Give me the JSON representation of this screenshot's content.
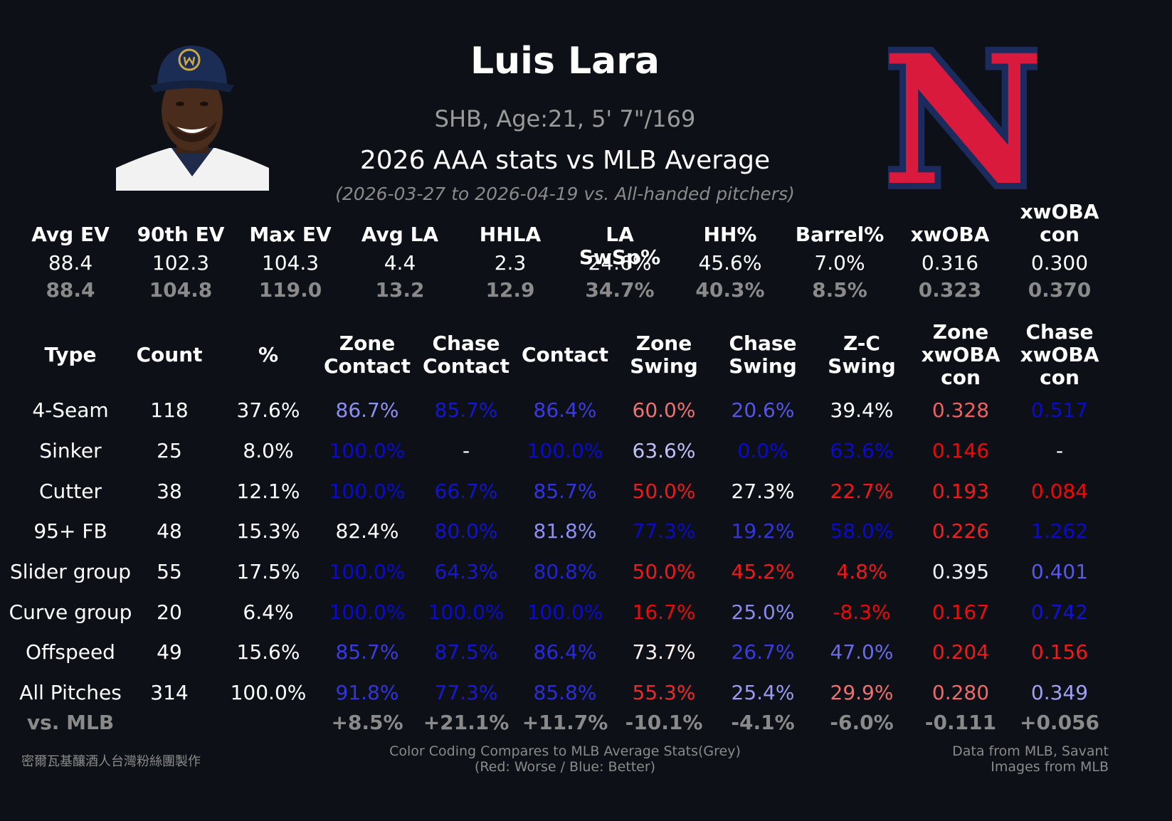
{
  "header": {
    "name": "Luis Lara",
    "bio": "SHB, Age:21, 5' 7\"/169",
    "subtitle": "2026 AAA stats vs MLB Average",
    "date_range": "(2026-03-27 to 2026-04-19 vs. All-handed pitchers)"
  },
  "logo": {
    "letter": "N",
    "fill": "#d91a3c",
    "outline": "#1b2b5e"
  },
  "summary": {
    "headers": [
      [
        "Avg EV"
      ],
      [
        "90th EV"
      ],
      [
        "Max EV"
      ],
      [
        "Avg LA"
      ],
      [
        "HHLA"
      ],
      [
        "LA SwSp%"
      ],
      [
        "HH%"
      ],
      [
        "Barrel%"
      ],
      [
        "xwOBA"
      ],
      [
        "xwOBA",
        "con"
      ]
    ],
    "player": [
      "88.4",
      "102.3",
      "104.3",
      "4.4",
      "2.3",
      "24.6%",
      "45.6%",
      "7.0%",
      "0.316",
      "0.300"
    ],
    "mlb": [
      "88.4",
      "104.8",
      "119.0",
      "13.2",
      "12.9",
      "34.7%",
      "40.3%",
      "8.5%",
      "0.323",
      "0.370"
    ]
  },
  "table": {
    "headers": [
      [
        "Type"
      ],
      [
        "Count"
      ],
      [
        "%"
      ],
      [
        "Zone",
        "Contact"
      ],
      [
        "Chase",
        "Contact"
      ],
      [
        "Contact"
      ],
      [
        "Zone",
        "Swing"
      ],
      [
        "Chase",
        "Swing"
      ],
      [
        "Z-C",
        "Swing"
      ],
      [
        "Zone",
        "xwOBA",
        "con"
      ],
      [
        "Chase",
        "xwOBA",
        "con"
      ]
    ],
    "rows": [
      {
        "cells": [
          "4-Seam",
          "118",
          "37.6%",
          "86.7%",
          "85.7%",
          "86.4%",
          "60.0%",
          "20.6%",
          "39.4%",
          "0.328",
          "0.517"
        ],
        "colors": [
          "#ffffff",
          "#ffffff",
          "#ffffff",
          "#8f8ff0",
          "#1515d8",
          "#3b3be0",
          "#f07070",
          "#5555e8",
          "#ffffff",
          "#f06060",
          "#0a0ad0"
        ]
      },
      {
        "cells": [
          "Sinker",
          "25",
          "8.0%",
          "100.0%",
          "-",
          "100.0%",
          "63.6%",
          "0.0%",
          "63.6%",
          "0.146",
          "-"
        ],
        "colors": [
          "#ffffff",
          "#ffffff",
          "#ffffff",
          "#0a0ad0",
          "#ffffff",
          "#0a0ad0",
          "#c0c0f8",
          "#0a0ad0",
          "#0a0ad0",
          "#f00808",
          "#ffffff"
        ]
      },
      {
        "cells": [
          "Cutter",
          "38",
          "12.1%",
          "100.0%",
          "66.7%",
          "85.7%",
          "50.0%",
          "27.3%",
          "22.7%",
          "0.193",
          "0.084"
        ],
        "colors": [
          "#ffffff",
          "#ffffff",
          "#ffffff",
          "#0a0ad0",
          "#1212d4",
          "#3434de",
          "#f01818",
          "#ffffff",
          "#f01818",
          "#f01a1a",
          "#f00808"
        ]
      },
      {
        "cells": [
          "95+ FB",
          "48",
          "15.3%",
          "82.4%",
          "80.0%",
          "81.8%",
          "77.3%",
          "19.2%",
          "58.0%",
          "0.226",
          "1.262"
        ],
        "colors": [
          "#ffffff",
          "#ffffff",
          "#ffffff",
          "#ffffff",
          "#1212d4",
          "#8f8ff0",
          "#0a0ad0",
          "#3434e0",
          "#0a0ad0",
          "#f02020",
          "#0a0ad0"
        ]
      },
      {
        "cells": [
          "Slider group",
          "55",
          "17.5%",
          "100.0%",
          "64.3%",
          "80.8%",
          "50.0%",
          "45.2%",
          "4.8%",
          "0.395",
          "0.401"
        ],
        "colors": [
          "#ffffff",
          "#ffffff",
          "#ffffff",
          "#0a0ad0",
          "#1818d4",
          "#2222d8",
          "#f01818",
          "#f01818",
          "#f01818",
          "#f2f2ff",
          "#5858e8"
        ]
      },
      {
        "cells": [
          "Curve group",
          "20",
          "6.4%",
          "100.0%",
          "100.0%",
          "100.0%",
          "16.7%",
          "25.0%",
          "-8.3%",
          "0.167",
          "0.742"
        ],
        "colors": [
          "#ffffff",
          "#ffffff",
          "#ffffff",
          "#0a0ad0",
          "#0a0ad0",
          "#0a0ad0",
          "#f00808",
          "#8a8aee",
          "#f00808",
          "#f00c0c",
          "#1212d4"
        ]
      },
      {
        "cells": [
          "Offspeed",
          "49",
          "15.6%",
          "85.7%",
          "87.5%",
          "86.4%",
          "73.7%",
          "26.7%",
          "47.0%",
          "0.204",
          "0.156"
        ],
        "colors": [
          "#ffffff",
          "#ffffff",
          "#ffffff",
          "#3b3be0",
          "#1515d8",
          "#2a2adc",
          "#fff2f2",
          "#3b3be0",
          "#6a6aea",
          "#f01a1a",
          "#f01a1a"
        ]
      },
      {
        "cells": [
          "All Pitches",
          "314",
          "100.0%",
          "91.8%",
          "77.3%",
          "85.8%",
          "55.3%",
          "25.4%",
          "29.9%",
          "0.280",
          "0.349"
        ],
        "colors": [
          "#ffffff",
          "#ffffff",
          "#ffffff",
          "#3434de",
          "#1a1ad6",
          "#2c2cdc",
          "#f02828",
          "#9a9af0",
          "#f07070",
          "#f06868",
          "#a0a0f2"
        ]
      }
    ],
    "vs_mlb": [
      "vs. MLB",
      "",
      "",
      "+8.5%",
      "+21.1%",
      "+11.7%",
      "-10.1%",
      "-4.1%",
      "-6.0%",
      "-0.111",
      "+0.056"
    ]
  },
  "footer": {
    "credit": "密爾瓦基釀酒人台灣粉絲團製作",
    "legend_line1": "Color Coding Compares to MLB Average Stats(Grey)",
    "legend_line2": "(Red: Worse / Blue: Better)",
    "source_line1": "Data from MLB, Savant",
    "source_line2": "Images from MLB"
  }
}
